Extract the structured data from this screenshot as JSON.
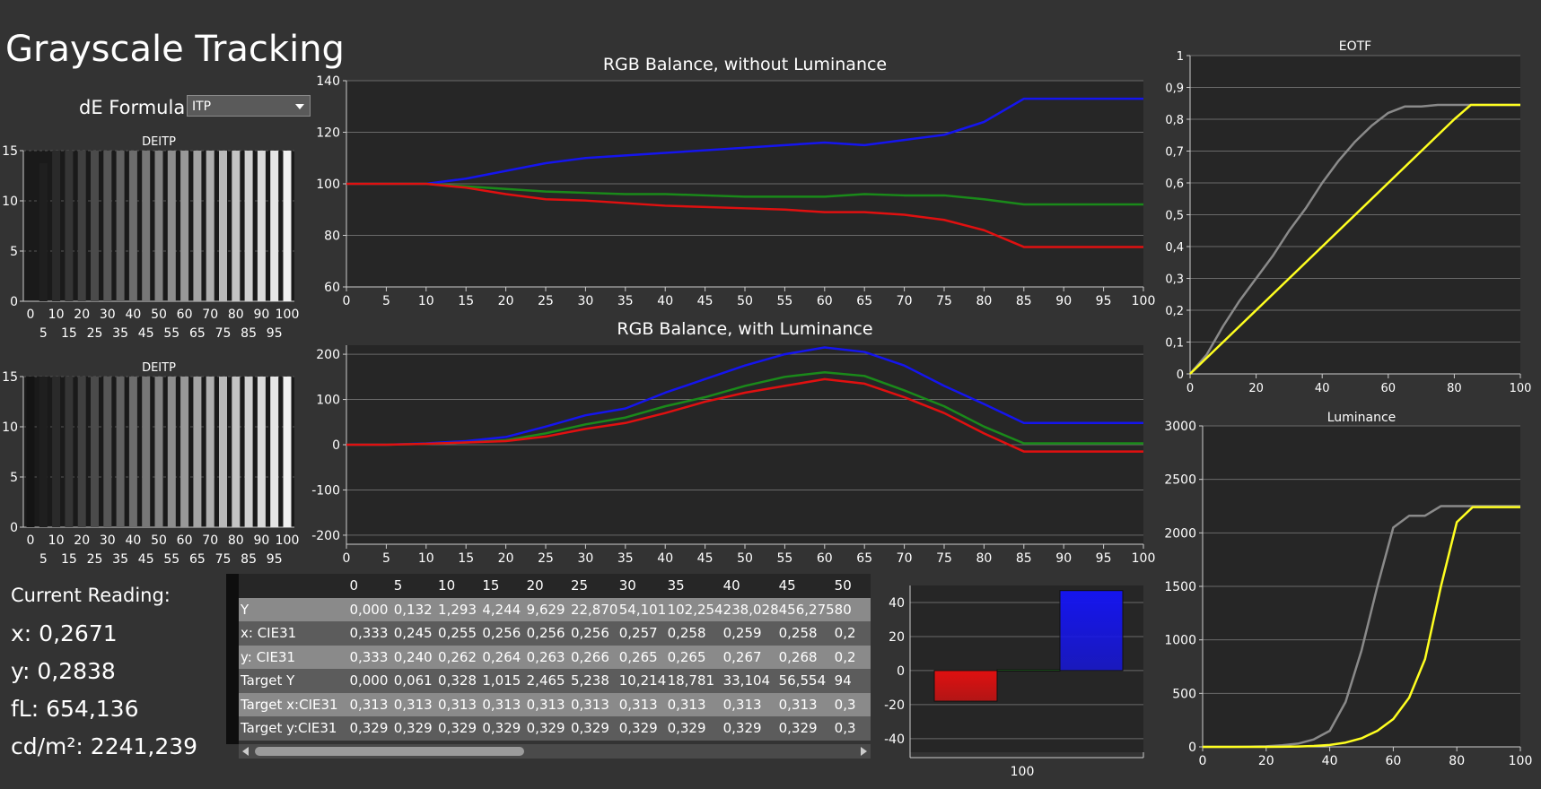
{
  "app": {
    "title": "Grayscale Tracking",
    "de_formula_label": "dE Formula:",
    "de_formula_value": "ITP"
  },
  "current_reading": {
    "header": "Current Reading:",
    "x": "x: 0,2671",
    "y": "y: 0,2838",
    "fl": "fL: 654,136",
    "cdm2": "cd/m²: 2241,239"
  },
  "colors": {
    "background": "#333333",
    "plot_bg": "#262626",
    "red": "#e01010",
    "green": "#1a8a1a",
    "blue": "#1515ee",
    "yellow": "#ffff20",
    "gray_curve": "#8a8a8a"
  },
  "table": {
    "columns": [
      "0",
      "5",
      "10",
      "15",
      "20",
      "25",
      "30",
      "35",
      "40",
      "45",
      "50"
    ],
    "rows": [
      {
        "label": "Y",
        "values": [
          "0,000",
          "0,132",
          "1,293",
          "4,244",
          "9,629",
          "22,870",
          "54,101",
          "102,254",
          "238,028",
          "456,275",
          "80"
        ]
      },
      {
        "label": "x: CIE31",
        "values": [
          "0,333",
          "0,245",
          "0,255",
          "0,256",
          "0,256",
          "0,256",
          "0,257",
          "0,258",
          "0,259",
          "0,258",
          "0,2"
        ]
      },
      {
        "label": "y: CIE31",
        "values": [
          "0,333",
          "0,240",
          "0,262",
          "0,264",
          "0,263",
          "0,266",
          "0,265",
          "0,265",
          "0,267",
          "0,268",
          "0,2"
        ]
      },
      {
        "label": "Target Y",
        "values": [
          "0,000",
          "0,061",
          "0,328",
          "1,015",
          "2,465",
          "5,238",
          "10,214",
          "18,781",
          "33,104",
          "56,554",
          "94"
        ]
      },
      {
        "label": "Target x:CIE31",
        "values": [
          "0,313",
          "0,313",
          "0,313",
          "0,313",
          "0,313",
          "0,313",
          "0,313",
          "0,313",
          "0,313",
          "0,313",
          "0,3"
        ]
      },
      {
        "label": "Target y:CIE31",
        "values": [
          "0,329",
          "0,329",
          "0,329",
          "0,329",
          "0,329",
          "0,329",
          "0,329",
          "0,329",
          "0,329",
          "0,329",
          "0,3"
        ]
      }
    ]
  },
  "chart_data": [
    {
      "id": "deitp1",
      "type": "bar",
      "title": "DEITP",
      "categories": [
        0,
        5,
        10,
        15,
        20,
        25,
        30,
        35,
        40,
        45,
        50,
        55,
        60,
        65,
        70,
        75,
        80,
        85,
        90,
        95,
        100
      ],
      "values": [
        0,
        13.5,
        15,
        15,
        15,
        15,
        15,
        15,
        15,
        15,
        15,
        15,
        15,
        15,
        15,
        15,
        15,
        15,
        15,
        15,
        15
      ],
      "xticks_top": [
        "0",
        "10",
        "20",
        "30",
        "40",
        "50",
        "60",
        "70",
        "80",
        "90",
        "100"
      ],
      "xticks_bottom": [
        "5",
        "15",
        "25",
        "35",
        "45",
        "55",
        "65",
        "75",
        "85",
        "95"
      ],
      "yticks": [
        "0",
        "5",
        "10",
        "15"
      ],
      "ylim": [
        0,
        15
      ]
    },
    {
      "id": "deitp2",
      "type": "bar",
      "title": "DEITP",
      "categories": [
        0,
        5,
        10,
        15,
        20,
        25,
        30,
        35,
        40,
        45,
        50,
        55,
        60,
        65,
        70,
        75,
        80,
        85,
        90,
        95,
        100
      ],
      "values": [
        15,
        15,
        15,
        15,
        15,
        15,
        15,
        15,
        15,
        15,
        15,
        15,
        15,
        15,
        15,
        15,
        15,
        15,
        15,
        15,
        15
      ],
      "xticks_top": [
        "0",
        "10",
        "20",
        "30",
        "40",
        "50",
        "60",
        "70",
        "80",
        "90",
        "100"
      ],
      "xticks_bottom": [
        "5",
        "15",
        "25",
        "35",
        "45",
        "55",
        "65",
        "75",
        "85",
        "95"
      ],
      "yticks": [
        "0",
        "5",
        "10",
        "15"
      ],
      "ylim": [
        0,
        15
      ]
    },
    {
      "id": "rgb_wo",
      "type": "line",
      "title": "RGB Balance, without Luminance",
      "x": [
        0,
        5,
        10,
        15,
        20,
        25,
        30,
        35,
        40,
        45,
        50,
        55,
        60,
        65,
        70,
        75,
        80,
        85,
        90,
        95,
        100
      ],
      "xticks": [
        "0",
        "5",
        "10",
        "15",
        "20",
        "25",
        "30",
        "35",
        "40",
        "45",
        "50",
        "55",
        "60",
        "65",
        "70",
        "75",
        "80",
        "85",
        "90",
        "95",
        "100"
      ],
      "yticks": [
        "60",
        "80",
        "100",
        "120",
        "140"
      ],
      "ylim": [
        60,
        140
      ],
      "series": [
        {
          "color": "#1515ee",
          "values": [
            100,
            100,
            100,
            102,
            105,
            108,
            110,
            111,
            112,
            113,
            114,
            115,
            116,
            115,
            117,
            119,
            124,
            133,
            133,
            133,
            133
          ]
        },
        {
          "color": "#1a8a1a",
          "values": [
            100,
            100,
            100,
            99,
            98,
            97,
            96.5,
            96,
            96,
            95.5,
            95,
            95,
            95,
            96,
            95.5,
            95.5,
            94,
            92,
            92,
            92,
            92
          ]
        },
        {
          "color": "#e01010",
          "values": [
            100,
            100,
            100,
            98.5,
            96,
            94,
            93.5,
            92.5,
            91.5,
            91,
            90.5,
            90,
            89,
            89,
            88,
            86,
            82,
            75.5,
            75.5,
            75.5,
            75.5
          ]
        }
      ]
    },
    {
      "id": "rgb_w",
      "type": "line",
      "title": "RGB Balance, with Luminance",
      "x": [
        0,
        5,
        10,
        15,
        20,
        25,
        30,
        35,
        40,
        45,
        50,
        55,
        60,
        65,
        70,
        75,
        80,
        85,
        90,
        95,
        100
      ],
      "xticks": [
        "0",
        "5",
        "10",
        "15",
        "20",
        "25",
        "30",
        "35",
        "40",
        "45",
        "50",
        "55",
        "60",
        "65",
        "70",
        "75",
        "80",
        "85",
        "90",
        "95",
        "100"
      ],
      "yticks": [
        "-200",
        "-100",
        "0",
        "100",
        "200"
      ],
      "ylim": [
        -220,
        220
      ],
      "series": [
        {
          "color": "#1515ee",
          "values": [
            0,
            0,
            3,
            8,
            17,
            40,
            65,
            80,
            115,
            145,
            175,
            200,
            215,
            205,
            175,
            130,
            90,
            48,
            48,
            48,
            48
          ]
        },
        {
          "color": "#1a8a1a",
          "values": [
            0,
            0,
            2,
            5,
            10,
            25,
            45,
            60,
            85,
            105,
            130,
            150,
            160,
            152,
            120,
            85,
            40,
            3,
            3,
            3,
            3
          ]
        },
        {
          "color": "#e01010",
          "values": [
            0,
            0,
            2,
            5,
            8,
            18,
            35,
            48,
            70,
            95,
            115,
            130,
            145,
            135,
            105,
            70,
            25,
            -15,
            -15,
            -15,
            -15
          ]
        }
      ]
    },
    {
      "id": "eotf",
      "type": "line",
      "title": "EOTF",
      "x": [
        0,
        5,
        10,
        15,
        20,
        25,
        30,
        35,
        40,
        45,
        50,
        55,
        60,
        65,
        70,
        75,
        80,
        85,
        90,
        95,
        100
      ],
      "xticks": [
        "0",
        "20",
        "40",
        "60",
        "80",
        "100"
      ],
      "yticks": [
        "0",
        "0,1",
        "0,2",
        "0,3",
        "0,4",
        "0,5",
        "0,6",
        "0,7",
        "0,8",
        "0,9",
        "1"
      ],
      "ylim": [
        0,
        1
      ],
      "series": [
        {
          "color": "#8a8a8a",
          "values": [
            0,
            0.06,
            0.15,
            0.23,
            0.3,
            0.37,
            0.45,
            0.52,
            0.6,
            0.67,
            0.73,
            0.78,
            0.82,
            0.84,
            0.84,
            0.845,
            0.845,
            0.845,
            0.845,
            0.845,
            0.845
          ]
        },
        {
          "color": "#ffff20",
          "values": [
            0,
            0.05,
            0.1,
            0.15,
            0.2,
            0.25,
            0.3,
            0.35,
            0.4,
            0.45,
            0.5,
            0.55,
            0.6,
            0.65,
            0.7,
            0.75,
            0.8,
            0.845,
            0.845,
            0.845,
            0.845
          ]
        }
      ]
    },
    {
      "id": "lum",
      "type": "line",
      "title": "Luminance",
      "x": [
        0,
        5,
        10,
        15,
        20,
        25,
        30,
        35,
        40,
        45,
        50,
        55,
        60,
        65,
        70,
        75,
        80,
        85,
        90,
        95,
        100
      ],
      "xticks": [
        "0",
        "20",
        "40",
        "60",
        "80",
        "100"
      ],
      "yticks": [
        "0",
        "500",
        "1000",
        "1500",
        "2000",
        "2500",
        "3000"
      ],
      "ylim": [
        0,
        3000
      ],
      "series": [
        {
          "color": "#8a8a8a",
          "values": [
            0,
            0,
            0,
            2,
            5,
            15,
            30,
            70,
            150,
            420,
            900,
            1500,
            2050,
            2160,
            2160,
            2250,
            2250,
            2250,
            2250,
            2250,
            2250
          ]
        },
        {
          "color": "#ffff20",
          "values": [
            0,
            0,
            0,
            0,
            0,
            1,
            3,
            8,
            18,
            40,
            80,
            150,
            260,
            460,
            820,
            1500,
            2100,
            2241,
            2241,
            2241,
            2241
          ]
        }
      ]
    },
    {
      "id": "rgb_bars",
      "type": "bar",
      "categories": [
        "100"
      ],
      "series": [
        {
          "color": "#e01010",
          "value": -18
        },
        {
          "color": "#1a8a1a",
          "value": 0.5
        },
        {
          "color": "#1515ee",
          "value": 47
        }
      ],
      "yticks": [
        "-40",
        "-20",
        "0",
        "20",
        "40"
      ],
      "ylim": [
        -48,
        50
      ]
    }
  ]
}
